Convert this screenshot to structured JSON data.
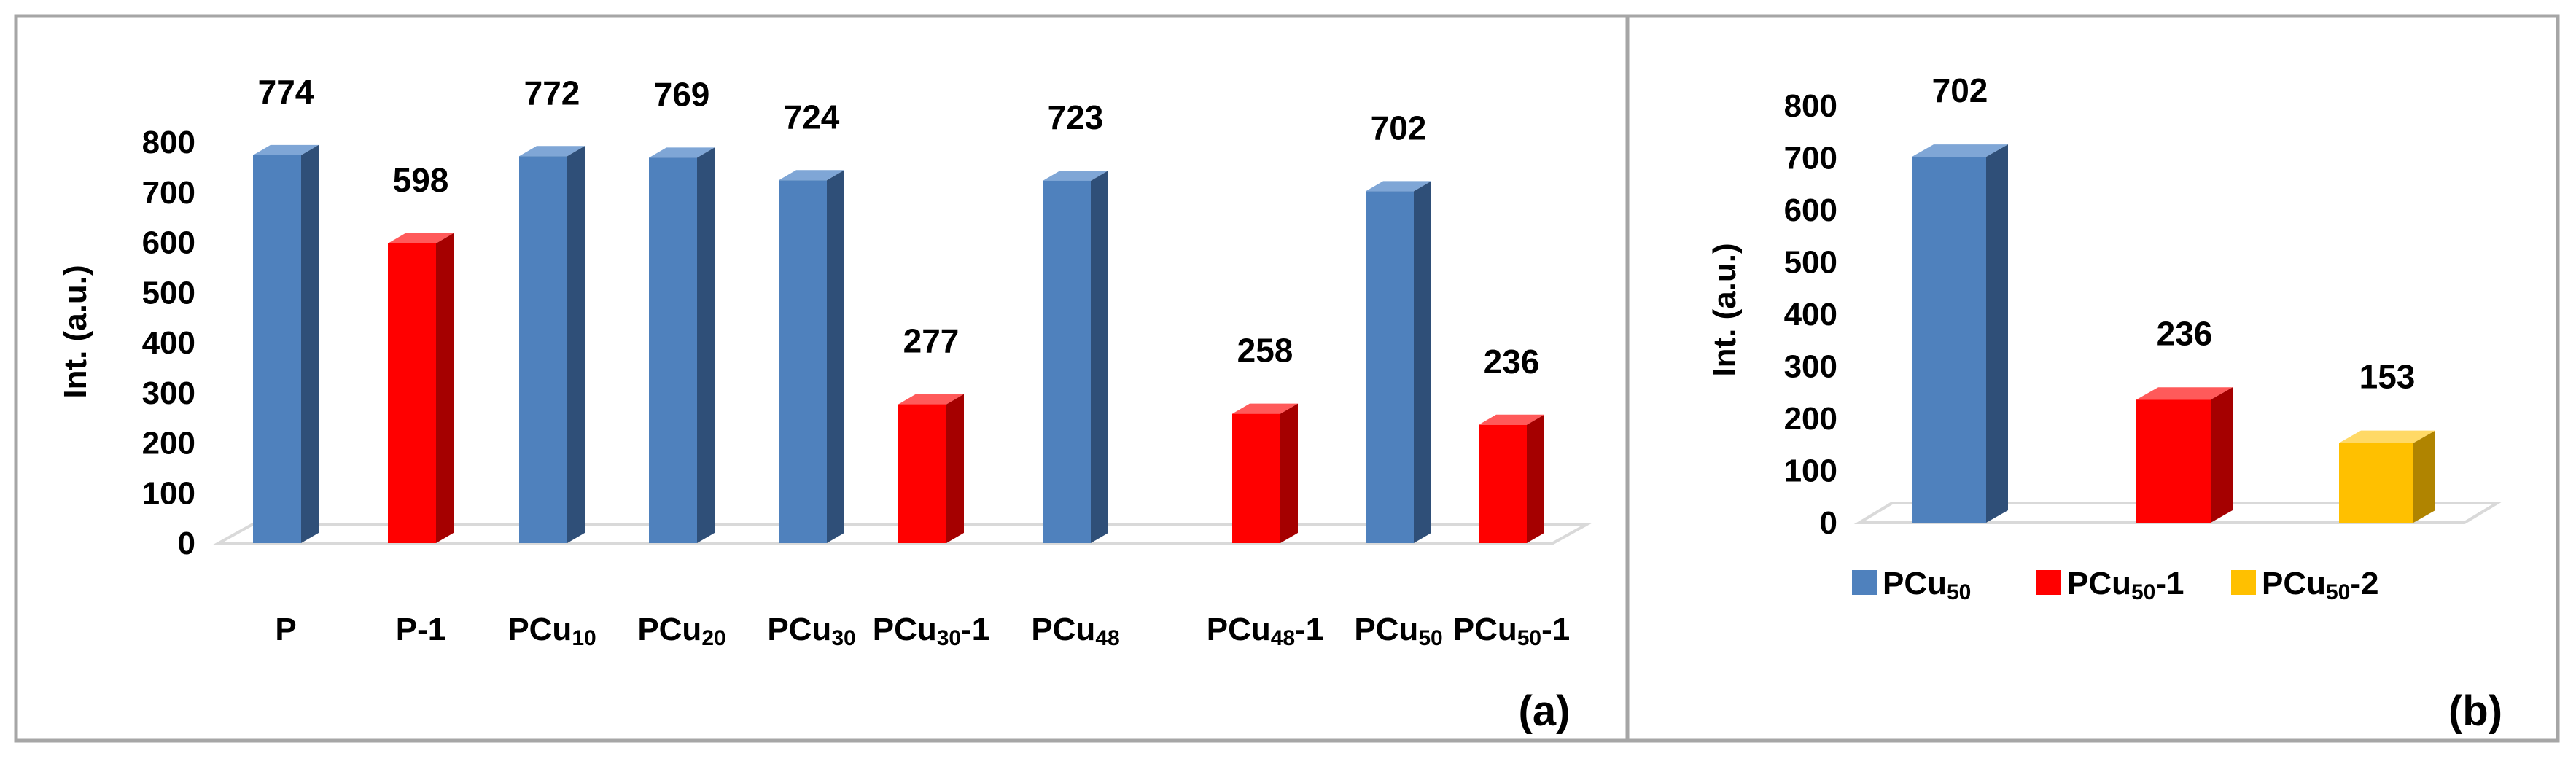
{
  "panels": [
    {
      "label": "(a)",
      "chart_data": {
        "type": "bar",
        "ylabel": "Int. (a.u.)",
        "ylim": [
          0,
          800
        ],
        "yticks": [
          0,
          100,
          200,
          300,
          400,
          500,
          600,
          700,
          800
        ],
        "categories": [
          {
            "main": "P",
            "sub": "",
            "suffix": ""
          },
          {
            "main": "P-1",
            "sub": "",
            "suffix": ""
          },
          {
            "main": "PCu",
            "sub": "10",
            "suffix": ""
          },
          {
            "main": "PCu",
            "sub": "20",
            "suffix": ""
          },
          {
            "main": "PCu",
            "sub": "30",
            "suffix": ""
          },
          {
            "main": "PCu",
            "sub": "30",
            "suffix": "-1"
          },
          {
            "main": "PCu",
            "sub": "48",
            "suffix": ""
          },
          {
            "main": "PCu",
            "sub": "48",
            "suffix": "-1"
          },
          {
            "main": "PCu",
            "sub": "50",
            "suffix": ""
          },
          {
            "main": "PCu",
            "sub": "50",
            "suffix": "-1"
          }
        ],
        "values": [
          774,
          598,
          772,
          769,
          724,
          277,
          723,
          258,
          702,
          236
        ],
        "value_labels": [
          "774",
          "598",
          "772",
          "769",
          "724",
          "277",
          "723",
          "258",
          "702",
          "236"
        ],
        "bar_colors": [
          "blue",
          "red",
          "blue",
          "blue",
          "blue",
          "red",
          "blue",
          "red",
          "blue",
          "red"
        ],
        "grid": false,
        "legend": "none"
      }
    },
    {
      "label": "(b)",
      "chart_data": {
        "type": "bar",
        "ylabel": "Int. (a.u.)",
        "ylim": [
          0,
          800
        ],
        "yticks": [
          0,
          100,
          200,
          300,
          400,
          500,
          600,
          700,
          800
        ],
        "series": [
          {
            "main": "PCu",
            "sub": "50",
            "suffix": "",
            "value": 702,
            "value_label": "702",
            "color": "blue"
          },
          {
            "main": "PCu",
            "sub": "50",
            "suffix": "-1",
            "value": 236,
            "value_label": "236",
            "color": "red"
          },
          {
            "main": "PCu",
            "sub": "50",
            "suffix": "-2",
            "value": 153,
            "value_label": "153",
            "color": "yellow"
          }
        ],
        "grid": false,
        "legend": "bottom"
      }
    }
  ],
  "colors": {
    "blue": {
      "front": "#4f81bd",
      "side": "#2f4f78",
      "top": "#7fa6d6"
    },
    "red": {
      "front": "#ff0000",
      "side": "#a50000",
      "top": "#ff5a5a"
    },
    "yellow": {
      "front": "#ffc000",
      "side": "#b08400",
      "top": "#ffd966"
    },
    "border": "#a6a6a6",
    "floor": "#d9d9d9",
    "text": "#000000"
  }
}
